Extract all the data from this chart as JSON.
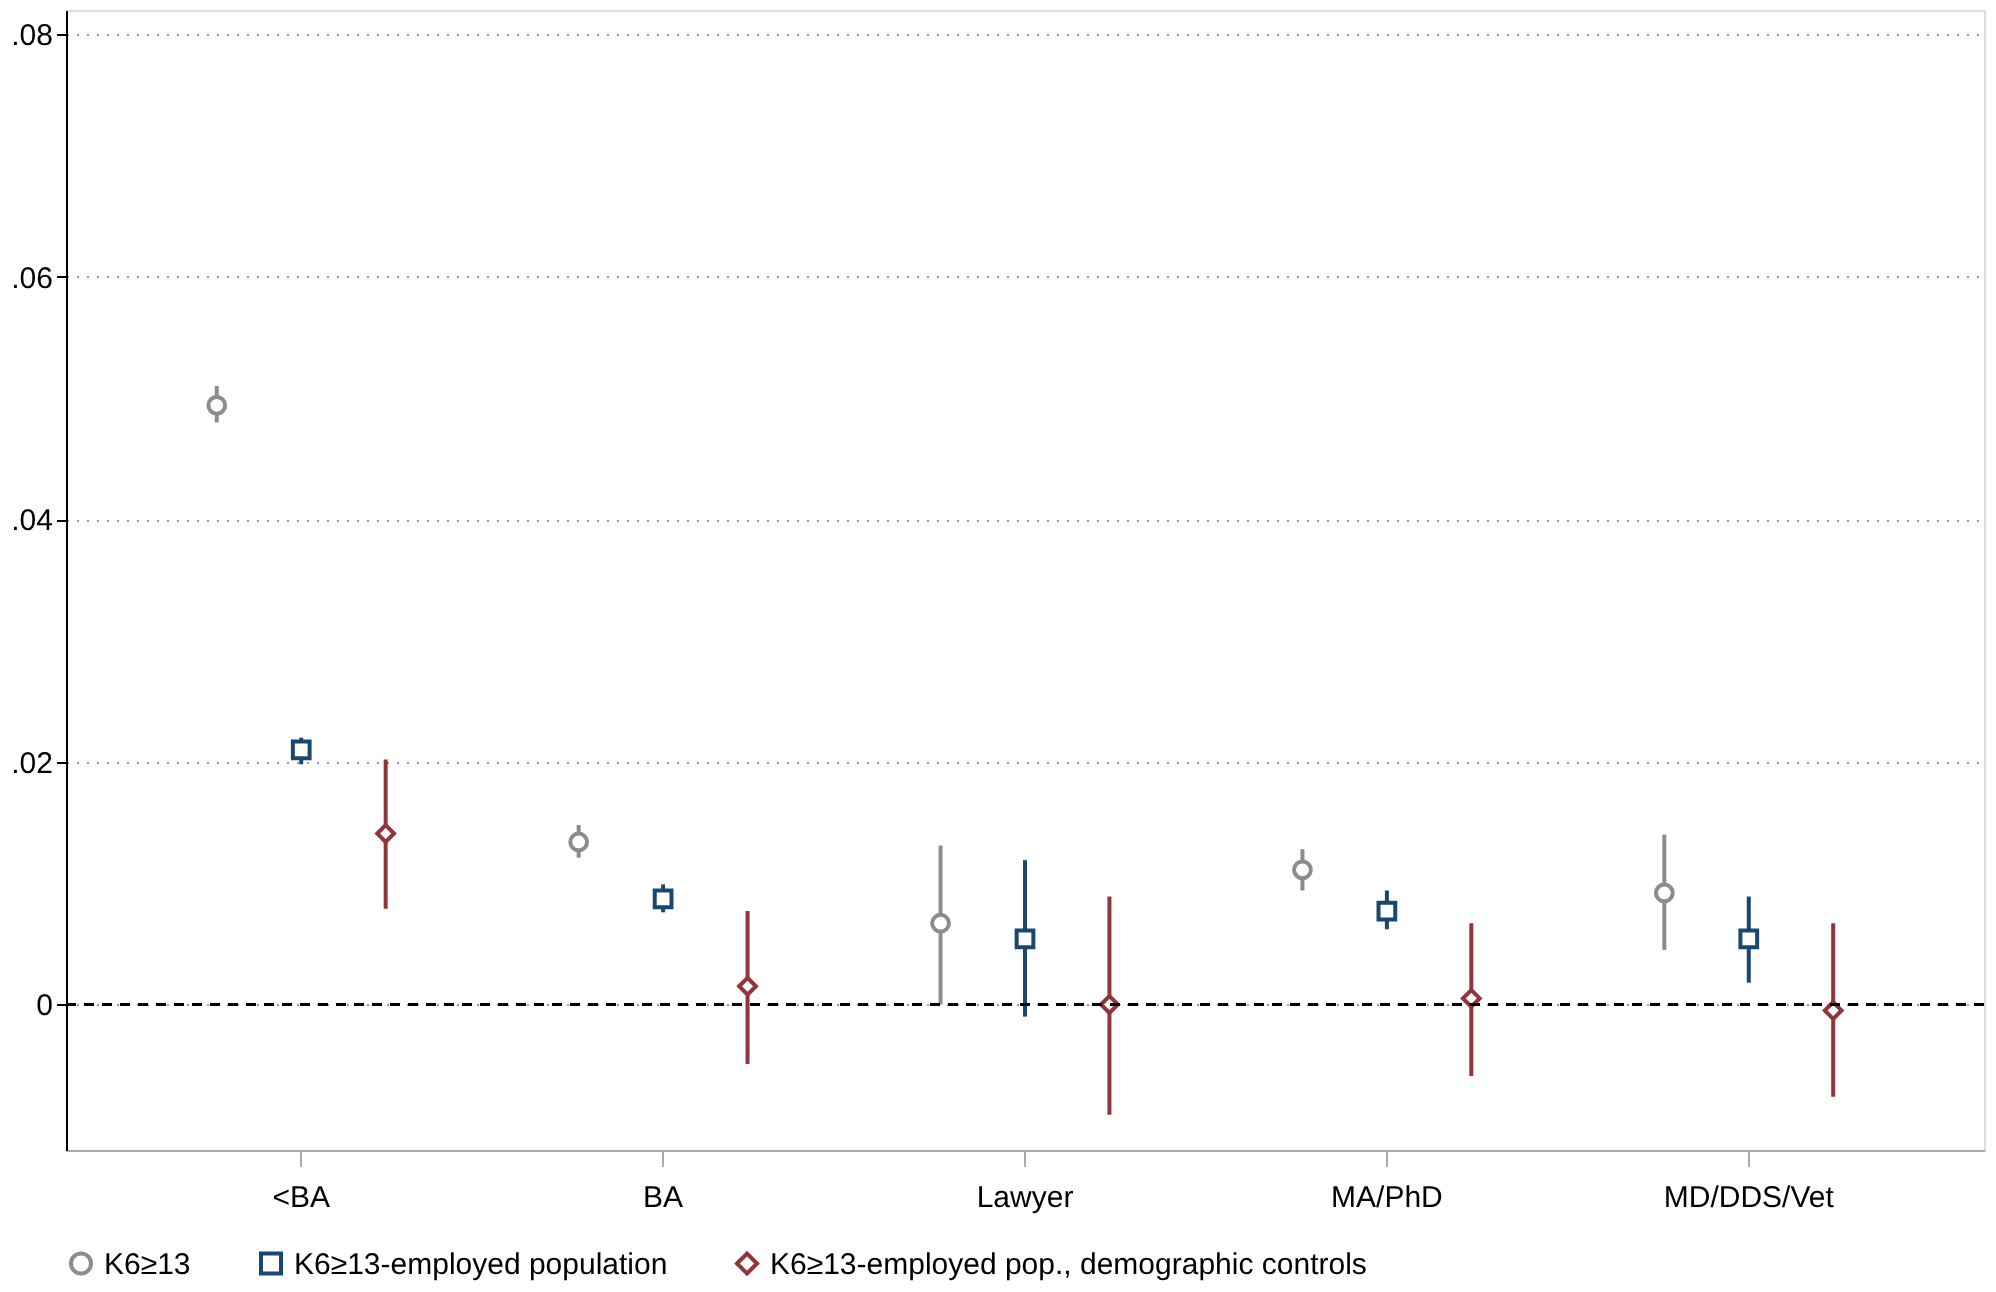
{
  "chart_data": {
    "type": "scatter",
    "categories": [
      "<BA",
      "BA",
      "Lawyer",
      "MA/PhD",
      "MD/DDS/Vet"
    ],
    "series": [
      {
        "name": "K6≥13",
        "color": "#8c8c8c",
        "marker": "circle",
        "values": [
          0.0494,
          0.0134,
          0.0067,
          0.0111,
          0.0092
        ],
        "errors": [
          [
            0.048,
            0.051
          ],
          [
            0.0121,
            0.0148
          ],
          [
            0.0,
            0.0131
          ],
          [
            0.0094,
            0.0128
          ],
          [
            0.0045,
            0.014
          ]
        ]
      },
      {
        "name": "K6≥13-employed population",
        "color": "#1a476f",
        "marker": "square",
        "values": [
          0.021,
          0.0087,
          0.0054,
          0.0077,
          0.0054
        ],
        "errors": [
          [
            0.0198,
            0.022
          ],
          [
            0.0076,
            0.0099
          ],
          [
            -0.001,
            0.0119
          ],
          [
            0.0062,
            0.0094
          ],
          [
            0.0018,
            0.0089
          ]
        ]
      },
      {
        "name": "K6≥13-employed pop., demographic controls",
        "color": "#90353b",
        "marker": "diamond",
        "values": [
          0.0141,
          0.0015,
          0.0,
          0.0005,
          -0.0005
        ],
        "errors": [
          [
            0.0079,
            0.0202
          ],
          [
            -0.0049,
            0.0077
          ],
          [
            -0.0091,
            0.0089
          ],
          [
            -0.0059,
            0.0067
          ],
          [
            -0.0076,
            0.0067
          ]
        ]
      }
    ],
    "ylim": [
      -0.012,
      0.082
    ],
    "yticks": [
      0,
      {
        "value": 0.02,
        "label": ".02"
      },
      {
        "value": 0.04,
        "label": ".04"
      },
      {
        "value": 0.06,
        "label": ".06"
      },
      {
        "value": 0.08,
        "label": ".08"
      }
    ],
    "ref_lines": [
      {
        "axis": "y",
        "value": 0,
        "color": "#000000",
        "line_style": "dashed"
      }
    ],
    "grid": "y",
    "legend": "bottom"
  }
}
